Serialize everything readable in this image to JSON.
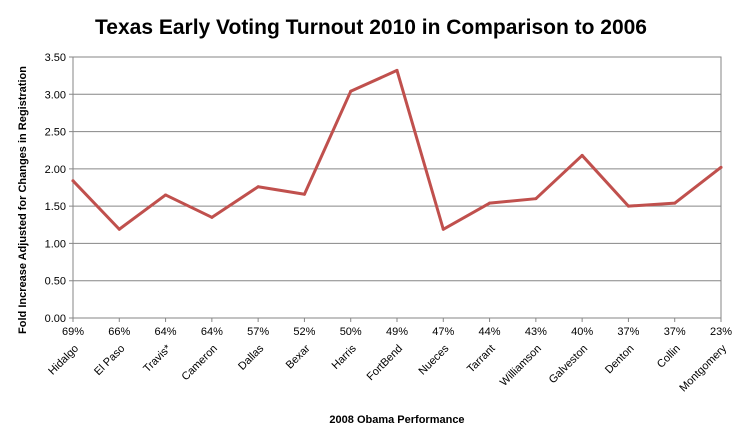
{
  "chart_data": {
    "type": "line",
    "title": "Texas Early Voting Turnout 2010 in Comparison to 2006",
    "xlabel": "2008 Obama Performance",
    "ylabel": "Fold Increase Adjusted for Changes in Registration",
    "ylim": [
      0,
      3.5
    ],
    "yticks": [
      "0.00",
      "0.50",
      "1.00",
      "1.50",
      "2.00",
      "2.50",
      "3.00",
      "3.50"
    ],
    "grid": true,
    "legend": "none",
    "categories": [
      "69%",
      "66%",
      "64%",
      "64%",
      "57%",
      "52%",
      "50%",
      "49%",
      "47%",
      "44%",
      "43%",
      "40%",
      "37%",
      "37%",
      "23%"
    ],
    "counties": [
      "Hidalgo",
      "El Paso",
      "Travis*",
      "Cameron",
      "Dallas",
      "Bexar",
      "Harris",
      "FortBend",
      "Nueces",
      "Tarrant",
      "Williamson",
      "Galveston",
      "Denton",
      "Collin",
      "Montgomery"
    ],
    "series": [
      {
        "color": "#c0504d",
        "values": [
          1.84,
          1.19,
          1.65,
          1.35,
          1.76,
          1.66,
          3.04,
          3.32,
          1.19,
          1.54,
          1.6,
          2.18,
          1.5,
          1.54,
          2.02
        ]
      }
    ]
  }
}
